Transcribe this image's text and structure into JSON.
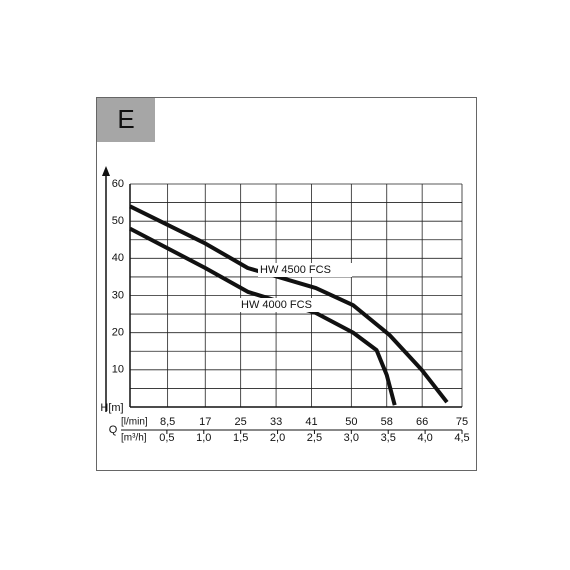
{
  "chart_data": {
    "type": "line",
    "title": "E",
    "ylabel": "H[m]",
    "xlabel": "Q",
    "xunit": "[l/min]",
    "x2unit": "[m³/h]",
    "xlim": [
      0,
      75
    ],
    "xticks": [
      {
        "value": 8.5,
        "label": "8,5"
      },
      17,
      25,
      33,
      41,
      50,
      58,
      66,
      75
    ],
    "x2lim": [
      0,
      4.5
    ],
    "x2ticks": [
      {
        "value": 0.5,
        "label": "0,5"
      },
      {
        "value": 1.0,
        "label": "1,0"
      },
      {
        "value": 1.5,
        "label": "1,5"
      },
      {
        "value": 2.0,
        "label": "2,0"
      },
      {
        "value": 2.5,
        "label": "2,5"
      },
      {
        "value": 3.0,
        "label": "3,0"
      },
      {
        "value": 3.5,
        "label": "3,5"
      },
      {
        "value": 4.0,
        "label": "4,0"
      },
      {
        "value": 4.5,
        "label": "4,5"
      }
    ],
    "ylim": [
      0,
      60
    ],
    "yticks": [
      10,
      20,
      30,
      40,
      50,
      60
    ],
    "yminorticks": [
      5,
      15,
      25,
      35,
      45,
      55
    ],
    "grid": true,
    "series": [
      {
        "name": "HW 4500 FCS",
        "color": "#111111",
        "x": [
          0,
          17,
          26.6,
          42,
          50.4,
          58.6,
          65.9,
          71.6
        ],
        "values": [
          54,
          44,
          37.4,
          32,
          27.4,
          19.4,
          10,
          1.3
        ]
      },
      {
        "name": "HW 4000 FCS",
        "color": "#111111",
        "x": [
          0,
          17,
          26.6,
          42,
          50.4,
          55.7,
          58,
          59.8
        ],
        "values": [
          48,
          37.4,
          31,
          25.3,
          20,
          15.3,
          8.6,
          0.5
        ]
      }
    ]
  }
}
